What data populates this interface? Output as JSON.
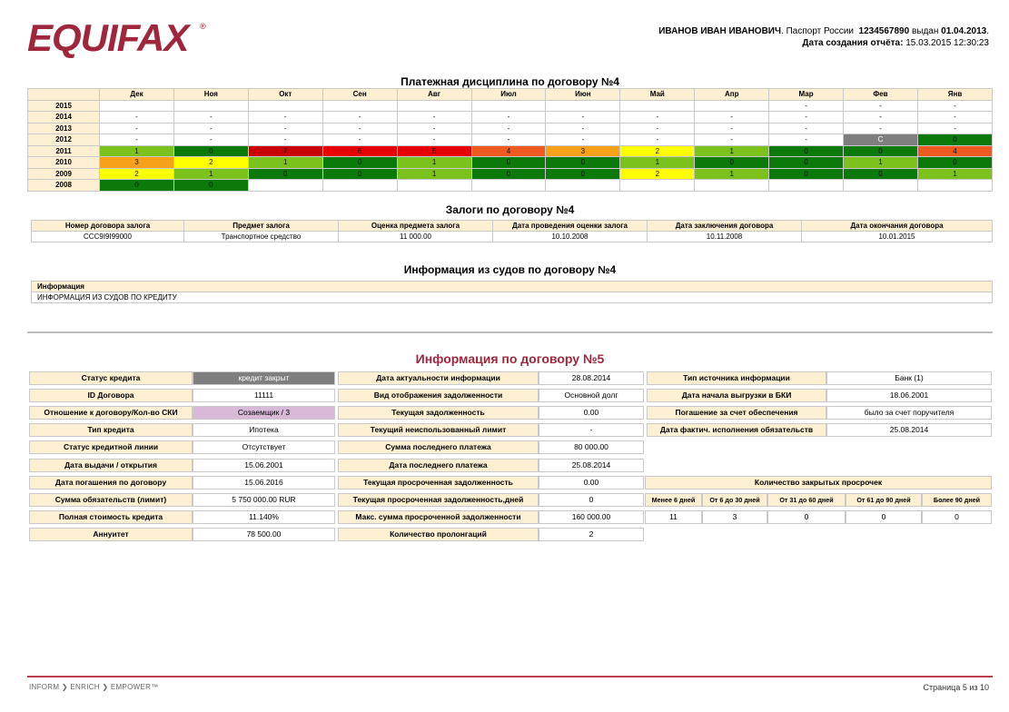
{
  "brand": {
    "logo_text": "EQUIFAX",
    "logo_reg": "®",
    "logo_color": "#a0263b"
  },
  "header": {
    "name": "ИВАНОВ ИВАН ИВАНОВИЧ",
    "passport_label": ". Паспорт России",
    "passport_no": "1234567890",
    "issued_label": "выдан",
    "issued_date": "01.04.2013",
    "issued_end": ".",
    "created_label": "Дата создания отчёта:",
    "created_value": "15.03.2015 12:30:23"
  },
  "payment": {
    "title": "Платежная дисциплина по договору №4",
    "months": [
      "Дек",
      "Ноя",
      "Окт",
      "Сен",
      "Авг",
      "Июл",
      "Июн",
      "Май",
      "Апр",
      "Мар",
      "Фев",
      "Янв"
    ],
    "rows": [
      {
        "year": "2015",
        "cells": [
          {
            "v": "",
            "c": ""
          },
          {
            "v": "",
            "c": ""
          },
          {
            "v": "",
            "c": ""
          },
          {
            "v": "",
            "c": ""
          },
          {
            "v": "",
            "c": ""
          },
          {
            "v": "",
            "c": ""
          },
          {
            "v": "",
            "c": ""
          },
          {
            "v": "",
            "c": ""
          },
          {
            "v": "",
            "c": ""
          },
          {
            "v": "-",
            "c": ""
          },
          {
            "v": "-",
            "c": ""
          },
          {
            "v": "-",
            "c": ""
          }
        ]
      },
      {
        "year": "2014",
        "cells": [
          {
            "v": "-",
            "c": ""
          },
          {
            "v": "-",
            "c": ""
          },
          {
            "v": "-",
            "c": ""
          },
          {
            "v": "-",
            "c": ""
          },
          {
            "v": "-",
            "c": ""
          },
          {
            "v": "-",
            "c": ""
          },
          {
            "v": "-",
            "c": ""
          },
          {
            "v": "-",
            "c": ""
          },
          {
            "v": "-",
            "c": ""
          },
          {
            "v": "-",
            "c": ""
          },
          {
            "v": "-",
            "c": ""
          },
          {
            "v": "-",
            "c": ""
          }
        ]
      },
      {
        "year": "2013",
        "cells": [
          {
            "v": "-",
            "c": ""
          },
          {
            "v": "-",
            "c": ""
          },
          {
            "v": "-",
            "c": ""
          },
          {
            "v": "-",
            "c": ""
          },
          {
            "v": "-",
            "c": ""
          },
          {
            "v": "-",
            "c": ""
          },
          {
            "v": "-",
            "c": ""
          },
          {
            "v": "-",
            "c": ""
          },
          {
            "v": "-",
            "c": ""
          },
          {
            "v": "-",
            "c": ""
          },
          {
            "v": "-",
            "c": ""
          },
          {
            "v": "-",
            "c": ""
          }
        ]
      },
      {
        "year": "2012",
        "cells": [
          {
            "v": "-",
            "c": ""
          },
          {
            "v": "-",
            "c": ""
          },
          {
            "v": "-",
            "c": ""
          },
          {
            "v": "-",
            "c": ""
          },
          {
            "v": "-",
            "c": ""
          },
          {
            "v": "-",
            "c": ""
          },
          {
            "v": "-",
            "c": ""
          },
          {
            "v": "-",
            "c": ""
          },
          {
            "v": "-",
            "c": ""
          },
          {
            "v": "-",
            "c": ""
          },
          {
            "v": "C",
            "c": "gr"
          },
          {
            "v": "0",
            "c": "dg"
          }
        ]
      },
      {
        "year": "2011",
        "cells": [
          {
            "v": "1",
            "c": "lg"
          },
          {
            "v": "0",
            "c": "dg"
          },
          {
            "v": "7",
            "c": "dr"
          },
          {
            "v": "6",
            "c": "r"
          },
          {
            "v": "5",
            "c": "r"
          },
          {
            "v": "4",
            "c": "or"
          },
          {
            "v": "3",
            "c": "o"
          },
          {
            "v": "2",
            "c": "y"
          },
          {
            "v": "1",
            "c": "lg"
          },
          {
            "v": "0",
            "c": "dg"
          },
          {
            "v": "0",
            "c": "dg"
          },
          {
            "v": "4",
            "c": "or"
          }
        ]
      },
      {
        "year": "2010",
        "cells": [
          {
            "v": "3",
            "c": "o"
          },
          {
            "v": "2",
            "c": "y"
          },
          {
            "v": "1",
            "c": "lg"
          },
          {
            "v": "0",
            "c": "dg"
          },
          {
            "v": "1",
            "c": "lg"
          },
          {
            "v": "0",
            "c": "dg"
          },
          {
            "v": "0",
            "c": "dg"
          },
          {
            "v": "1",
            "c": "lg"
          },
          {
            "v": "0",
            "c": "dg"
          },
          {
            "v": "0",
            "c": "dg"
          },
          {
            "v": "1",
            "c": "lg"
          },
          {
            "v": "0",
            "c": "dg"
          }
        ]
      },
      {
        "year": "2009",
        "cells": [
          {
            "v": "2",
            "c": "y"
          },
          {
            "v": "1",
            "c": "lg"
          },
          {
            "v": "0",
            "c": "dg"
          },
          {
            "v": "0",
            "c": "dg"
          },
          {
            "v": "1",
            "c": "lg"
          },
          {
            "v": "0",
            "c": "dg"
          },
          {
            "v": "0",
            "c": "dg"
          },
          {
            "v": "2",
            "c": "y"
          },
          {
            "v": "1",
            "c": "lg"
          },
          {
            "v": "0",
            "c": "dg"
          },
          {
            "v": "0",
            "c": "dg"
          },
          {
            "v": "1",
            "c": "lg"
          }
        ]
      },
      {
        "year": "2008",
        "cells": [
          {
            "v": "0",
            "c": "dg"
          },
          {
            "v": "0",
            "c": "dg"
          },
          {
            "v": "",
            "c": ""
          },
          {
            "v": "",
            "c": ""
          },
          {
            "v": "",
            "c": ""
          },
          {
            "v": "",
            "c": ""
          },
          {
            "v": "",
            "c": ""
          },
          {
            "v": "",
            "c": ""
          },
          {
            "v": "",
            "c": ""
          },
          {
            "v": "",
            "c": ""
          },
          {
            "v": "",
            "c": ""
          },
          {
            "v": "",
            "c": ""
          }
        ]
      }
    ]
  },
  "collateral": {
    "title": "Залоги по договору №4",
    "headers": [
      "Номер договора залога",
      "Предмет залога",
      "Оценка предмета залога",
      "Дата проведения оценки залога",
      "Дата заключения договора",
      "Дата окончания договора"
    ],
    "row": [
      "ССС9І9І99000",
      "Транспортное средство",
      "11 000.00",
      "10.10.2008",
      "10.11.2008",
      "10.01.2015"
    ]
  },
  "courts": {
    "title": "Информация из судов по договору №4",
    "header": "Информация",
    "value": "ИНФОРМАЦИЯ ИЗ СУДОВ ПО КРЕДИТУ"
  },
  "contract5": {
    "title": "Информация по договору №5",
    "col1": [
      {
        "label": "Статус кредита",
        "value": "кредит закрыт"
      },
      {
        "label": "ID Договора",
        "value": "11111"
      },
      {
        "label": "Отношение к договору/Кол-во СКИ",
        "value": "Созаемщик / 3"
      },
      {
        "label": "Тип кредита",
        "value": "Ипотека"
      },
      {
        "label": "Статус кредитной линии",
        "value": "Отсутствует"
      },
      {
        "label": "Дата выдачи / открытия",
        "value": "15.06.2001"
      },
      {
        "label": "Дата погашения по договору",
        "value": "15.06.2016"
      },
      {
        "label": "Сумма обязательств (лимит)",
        "value": "5 750 000.00  RUR"
      },
      {
        "label": "Полная стоимость кредита",
        "value": "11.140%"
      },
      {
        "label": "Аннуитет",
        "value": "78 500.00"
      }
    ],
    "col2": [
      {
        "label": "Дата актуальности информации",
        "value": "28.08.2014"
      },
      {
        "label": "Вид отображения задолженности",
        "value": "Основной долг"
      },
      {
        "label": "Текущая задолженность",
        "value": "0.00"
      },
      {
        "label": "Текущий неиспользованный лимит",
        "value": "-"
      },
      {
        "label": "Сумма последнего платежа",
        "value": "80 000.00"
      },
      {
        "label": "Дата последнего платежа",
        "value": "25.08.2014"
      },
      {
        "label": "Текущая просроченная задолженность",
        "value": "0.00"
      },
      {
        "label": "Текущая просроченная задолженность,дней",
        "value": "0"
      },
      {
        "label": "Макс. сумма просроченной задолженности",
        "value": "160 000.00"
      },
      {
        "label": "Количество пролонгаций",
        "value": "2"
      }
    ],
    "col3": [
      {
        "label": "Тип источника информации",
        "value": "Банк   (1)"
      },
      {
        "label": "Дата начала выгрузки в БКИ",
        "value": "18.06.2001"
      },
      {
        "label": "Погашение за счет обеспечения",
        "value": "было за счет поручителя"
      },
      {
        "label": "Дата фактич. исполнения обязательств",
        "value": "25.08.2014"
      }
    ],
    "overdue": {
      "title": "Количество закрытых просрочек",
      "headers": [
        "Менее 6 дней",
        "От 6 до 30 дней",
        "От 31 до 60 дней",
        "От 61 до 90 дней",
        "Более 90 дней"
      ],
      "values": [
        "11",
        "3",
        "0",
        "0",
        "0"
      ]
    }
  },
  "footer": {
    "tagline": "INFORM ❯ ENRICH ❯ EMPOWER™",
    "page": "Страница 5 из 10"
  }
}
